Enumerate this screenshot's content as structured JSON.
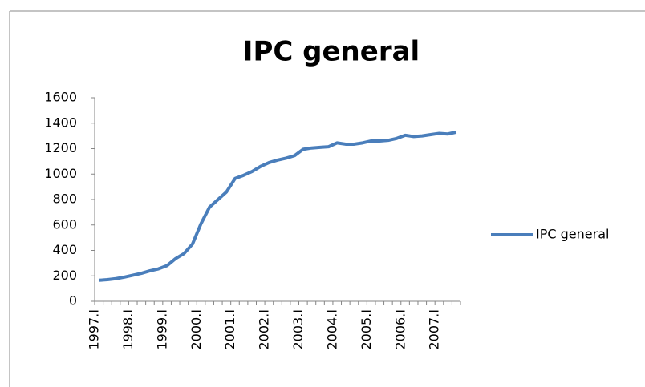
{
  "chart_data": {
    "type": "line",
    "title": "IPC general",
    "categories": [
      "1997.I",
      null,
      null,
      null,
      "1998.I",
      null,
      null,
      null,
      "1999.I",
      null,
      null,
      null,
      "2000.I",
      null,
      null,
      null,
      "2001.I",
      null,
      null,
      null,
      "2002.I",
      null,
      null,
      null,
      "2003.I",
      null,
      null,
      null,
      "2004.I",
      null,
      null,
      null,
      "2005.I",
      null,
      null,
      null,
      "2006.I",
      null,
      null,
      null,
      "2007.I",
      null,
      null
    ],
    "series": [
      {
        "name": "IPC general",
        "color": "#4a7ebb",
        "values": [
          165,
          170,
          178,
          190,
          205,
          220,
          240,
          255,
          280,
          335,
          375,
          450,
          610,
          740,
          800,
          860,
          965,
          990,
          1020,
          1060,
          1090,
          1110,
          1125,
          1145,
          1195,
          1205,
          1210,
          1215,
          1245,
          1235,
          1235,
          1245,
          1260,
          1260,
          1265,
          1280,
          1305,
          1295,
          1300,
          1310,
          1320,
          1315,
          1330
        ]
      }
    ],
    "ylim": [
      0,
      1600
    ],
    "yticks": [
      0,
      200,
      400,
      600,
      800,
      1000,
      1200,
      1400,
      1600
    ],
    "grid": false,
    "legend": "right"
  }
}
